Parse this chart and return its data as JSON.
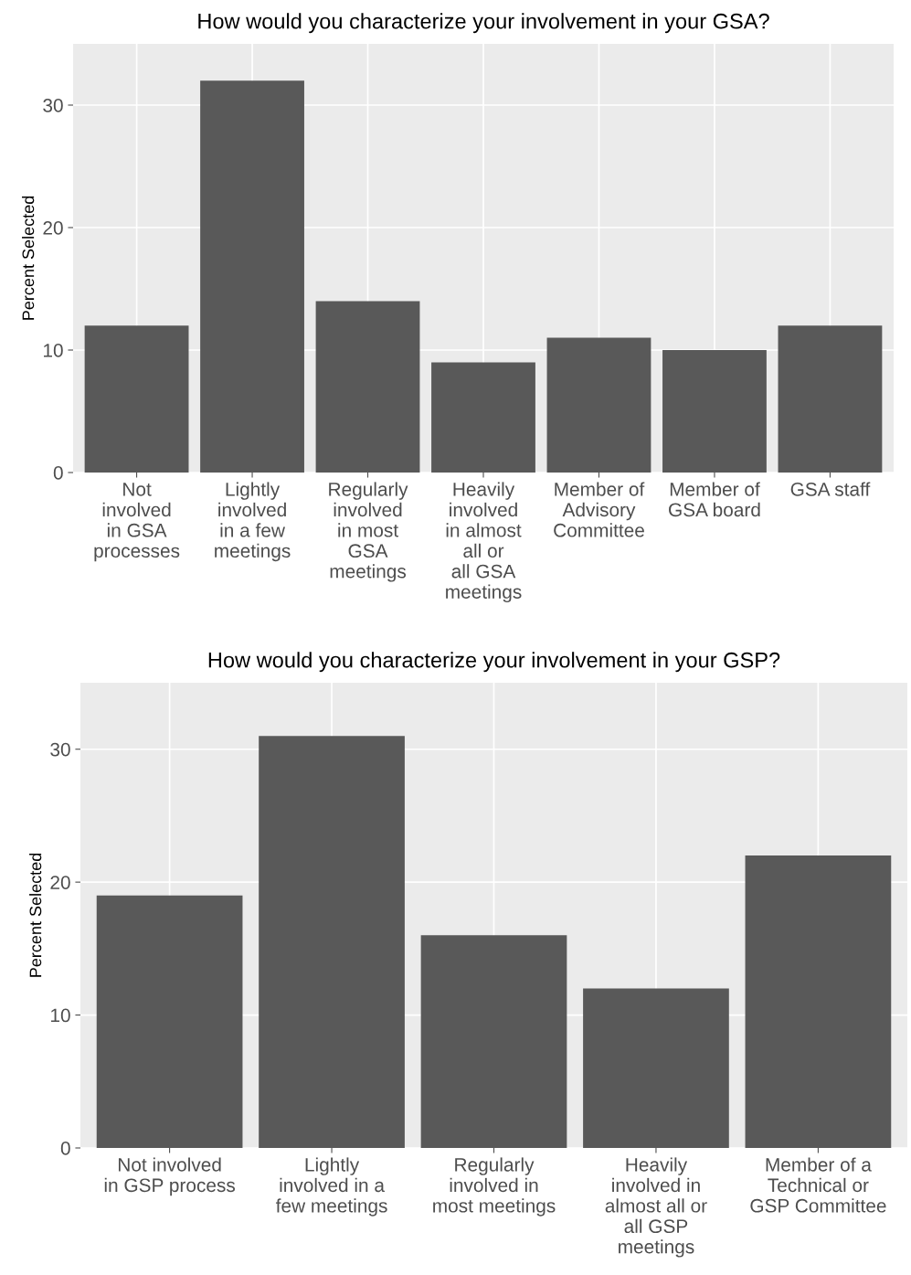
{
  "chart_data": [
    {
      "type": "bar",
      "title": "How would you characterize your involvement in your GSA?",
      "ylabel": "Percent Selected",
      "categories": [
        "Not\ninvolved\nin GSA\nprocesses",
        "Lightly\ninvolved\nin a few\nmeetings",
        "Regularly\ninvolved\nin most\nGSA\nmeetings",
        "Heavily\ninvolved\nin almost\nall or\nall GSA\nmeetings",
        "Member of\nAdvisory\nCommittee",
        "Member of\nGSA board",
        "GSA staff"
      ],
      "values": [
        12,
        32,
        14,
        9,
        11,
        10,
        12
      ],
      "color": "#595959",
      "ylim": [
        0,
        35
      ],
      "yticks": [
        0,
        10,
        20,
        30
      ],
      "grid": true
    },
    {
      "type": "bar",
      "title": "How would you characterize your involvement in your GSP?",
      "ylabel": "Percent Selected",
      "categories": [
        "Not involved\nin GSP process",
        "Lightly\ninvolved in a\nfew meetings",
        "Regularly\ninvolved in\nmost meetings",
        "Heavily\ninvolved in\nalmost all or\nall GSP\nmeetings",
        "Member of a\nTechnical or\nGSP Committee"
      ],
      "values": [
        19,
        31,
        16,
        12,
        22
      ],
      "color": "#595959",
      "ylim": [
        0,
        35
      ],
      "yticks": [
        0,
        10,
        20,
        30
      ],
      "grid": true
    }
  ]
}
